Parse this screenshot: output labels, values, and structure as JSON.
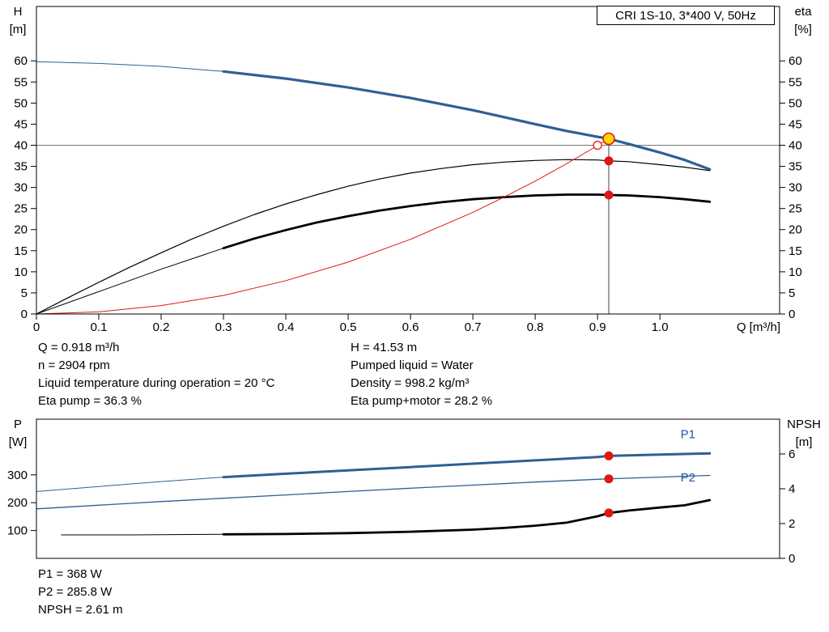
{
  "colors": {
    "curve_blue": "#2e6094",
    "label_blue": "#2256a5",
    "red": "#e01616",
    "yellow": "#ffd900",
    "black": "#000000",
    "gray_line": "#777777",
    "dark_line": "#444444"
  },
  "duty_info": {
    "left": [
      "Q = 0.918 m³/h",
      "n = 2904 rpm",
      "Liquid temperature during operation = 20 °C",
      "Eta pump = 36.3 %"
    ],
    "right": [
      "H = 41.53 m",
      "Pumped liquid = Water",
      "Density = 998.2 kg/m³",
      "Eta pump+motor = 28.2 %"
    ]
  },
  "power_info": [
    "P1 = 368 W",
    "P2 = 285.8 W",
    "NPSH = 2.61 m"
  ],
  "chart_data": [
    {
      "type": "line",
      "title": "CRI 1S-10, 3*400 V, 50Hz",
      "x_axis": {
        "label": "Q [m³/h]",
        "domain": [
          0,
          1.192
        ],
        "ticks": [
          0,
          0.1,
          0.2,
          0.3,
          0.4,
          0.5,
          0.6,
          0.7,
          0.8,
          0.9,
          1.0
        ],
        "tick_labels": [
          "0",
          "0.1",
          "0.2",
          "0.3",
          "0.4",
          "0.5",
          "0.6",
          "0.7",
          "0.8",
          "0.9",
          "1.0"
        ]
      },
      "y_left": {
        "name": "H",
        "unit": "[m]",
        "domain": [
          0,
          72.9
        ],
        "ticks": [
          0,
          5,
          10,
          15,
          20,
          25,
          30,
          35,
          40,
          45,
          50,
          55,
          60
        ]
      },
      "y_right": {
        "name": "eta",
        "unit": "[%]",
        "domain": [
          0,
          72.9
        ],
        "ticks": [
          0,
          5,
          10,
          15,
          20,
          25,
          30,
          35,
          40,
          45,
          50,
          55,
          60
        ]
      },
      "grid": false,
      "series": [
        {
          "name": "head-curve-min-flow",
          "axis": "left",
          "color": "curve_blue",
          "width": 1,
          "points": [
            [
              0,
              59.8
            ],
            [
              0.1,
              59.4
            ],
            [
              0.2,
              58.7
            ],
            [
              0.3,
              57.5
            ]
          ]
        },
        {
          "name": "head-curve",
          "axis": "left",
          "color": "curve_blue",
          "width": 3.2,
          "points": [
            [
              0.3,
              57.5
            ],
            [
              0.4,
              55.8
            ],
            [
              0.5,
              53.7
            ],
            [
              0.6,
              51.2
            ],
            [
              0.7,
              48.3
            ],
            [
              0.8,
              45.0
            ],
            [
              0.85,
              43.4
            ],
            [
              0.9,
              42.0
            ],
            [
              0.918,
              41.53
            ],
            [
              0.95,
              40.3
            ],
            [
              1.0,
              38.3
            ],
            [
              1.04,
              36.5
            ],
            [
              1.08,
              34.3
            ]
          ]
        },
        {
          "name": "eta-pump-curve",
          "axis": "right",
          "color": "black",
          "width": 1.2,
          "points": [
            [
              0,
              0
            ],
            [
              0.05,
              3.8
            ],
            [
              0.1,
              7.5
            ],
            [
              0.15,
              11.1
            ],
            [
              0.2,
              14.5
            ],
            [
              0.25,
              17.8
            ],
            [
              0.3,
              20.8
            ],
            [
              0.35,
              23.6
            ],
            [
              0.4,
              26.1
            ],
            [
              0.45,
              28.3
            ],
            [
              0.5,
              30.3
            ],
            [
              0.55,
              32.0
            ],
            [
              0.6,
              33.4
            ],
            [
              0.65,
              34.5
            ],
            [
              0.7,
              35.4
            ],
            [
              0.75,
              36.0
            ],
            [
              0.8,
              36.4
            ],
            [
              0.85,
              36.6
            ],
            [
              0.9,
              36.5
            ],
            [
              0.918,
              36.3
            ],
            [
              0.95,
              36.1
            ],
            [
              1.0,
              35.4
            ],
            [
              1.04,
              34.8
            ],
            [
              1.08,
              34.0
            ]
          ]
        },
        {
          "name": "eta-pump-motor-min-flow",
          "axis": "right",
          "color": "black",
          "width": 1,
          "points": [
            [
              0,
              0
            ],
            [
              0.1,
              5.3
            ],
            [
              0.2,
              10.6
            ],
            [
              0.3,
              15.6
            ]
          ]
        },
        {
          "name": "eta-pump-motor-curve",
          "axis": "right",
          "color": "black",
          "width": 2.8,
          "points": [
            [
              0.3,
              15.6
            ],
            [
              0.35,
              17.9
            ],
            [
              0.4,
              19.9
            ],
            [
              0.45,
              21.7
            ],
            [
              0.5,
              23.2
            ],
            [
              0.55,
              24.5
            ],
            [
              0.6,
              25.6
            ],
            [
              0.65,
              26.5
            ],
            [
              0.7,
              27.2
            ],
            [
              0.75,
              27.7
            ],
            [
              0.8,
              28.1
            ],
            [
              0.85,
              28.3
            ],
            [
              0.9,
              28.3
            ],
            [
              0.918,
              28.2
            ],
            [
              0.95,
              28.1
            ],
            [
              1.0,
              27.7
            ],
            [
              1.04,
              27.2
            ],
            [
              1.08,
              26.6
            ]
          ]
        },
        {
          "name": "system-curve",
          "axis": "left",
          "color": "red",
          "width": 1,
          "points": [
            [
              0,
              0
            ],
            [
              0.1,
              0.5
            ],
            [
              0.2,
              2.0
            ],
            [
              0.3,
              4.4
            ],
            [
              0.4,
              7.9
            ],
            [
              0.5,
              12.3
            ],
            [
              0.6,
              17.7
            ],
            [
              0.7,
              24.1
            ],
            [
              0.75,
              27.7
            ],
            [
              0.8,
              31.5
            ],
            [
              0.85,
              35.6
            ],
            [
              0.9,
              39.9
            ],
            [
              0.918,
              41.53
            ]
          ]
        }
      ],
      "guide_lines": [
        {
          "type": "h",
          "value": 40,
          "axis": "left",
          "color": "gray_line",
          "width": 1
        },
        {
          "type": "v",
          "x": 0.918,
          "from": 0,
          "to": 41.53,
          "axis": "left",
          "color": "dark_line",
          "width": 1
        }
      ],
      "markers": [
        {
          "name": "duty-point-specified",
          "x": 0.9,
          "y": 40,
          "axis": "left",
          "shape": "open-circle",
          "color": "red",
          "r": 5
        },
        {
          "name": "duty-point-actual",
          "x": 0.918,
          "y": 41.53,
          "axis": "left",
          "shape": "dot",
          "fill": "yellow",
          "stroke": "red",
          "r": 7
        },
        {
          "name": "eta-pump-point",
          "x": 0.918,
          "y": 36.3,
          "axis": "right",
          "shape": "dot",
          "fill": "red",
          "r": 5.5
        },
        {
          "name": "eta-pump-motor-point",
          "x": 0.918,
          "y": 28.2,
          "axis": "right",
          "shape": "dot",
          "fill": "red",
          "r": 5.5
        }
      ]
    },
    {
      "type": "line",
      "title": "",
      "x_axis": {
        "label": "",
        "domain": [
          0,
          1.192
        ],
        "ticks": [],
        "tick_labels": []
      },
      "y_left": {
        "name": "P",
        "unit": "[W]",
        "domain": [
          0,
          500
        ],
        "ticks": [
          100,
          200,
          300
        ]
      },
      "y_right": {
        "name": "NPSH",
        "unit": "[m]",
        "domain": [
          0,
          8
        ],
        "ticks": [
          0,
          2,
          4,
          6
        ]
      },
      "grid": false,
      "series": [
        {
          "name": "p1-curve-min-flow",
          "axis": "left",
          "color": "curve_blue",
          "width": 1,
          "points": [
            [
              0,
              240
            ],
            [
              0.1,
              258
            ],
            [
              0.2,
              276
            ],
            [
              0.3,
              292
            ]
          ]
        },
        {
          "name": "p1-curve",
          "axis": "left",
          "color": "curve_blue",
          "width": 3,
          "points": [
            [
              0.3,
              292
            ],
            [
              0.4,
              304
            ],
            [
              0.5,
              316
            ],
            [
              0.6,
              328
            ],
            [
              0.7,
              340
            ],
            [
              0.8,
              352
            ],
            [
              0.9,
              364
            ],
            [
              0.918,
              368
            ],
            [
              1.0,
              373
            ],
            [
              1.04,
              375
            ],
            [
              1.08,
              377
            ]
          ]
        },
        {
          "name": "p2-curve",
          "axis": "left",
          "color": "curve_blue",
          "width": 1.3,
          "points": [
            [
              0,
              178
            ],
            [
              0.1,
              191
            ],
            [
              0.2,
              204
            ],
            [
              0.3,
              216
            ],
            [
              0.4,
              228
            ],
            [
              0.5,
              240
            ],
            [
              0.6,
              252
            ],
            [
              0.7,
              263
            ],
            [
              0.8,
              274
            ],
            [
              0.9,
              284
            ],
            [
              0.918,
              285.8
            ],
            [
              0.95,
              288
            ],
            [
              1.0,
              292
            ],
            [
              1.04,
              295
            ],
            [
              1.08,
              298
            ]
          ]
        },
        {
          "name": "npsh-curve-min-flow",
          "axis": "right",
          "color": "black",
          "width": 1,
          "points": [
            [
              0.04,
              1.35
            ],
            [
              0.15,
              1.35
            ],
            [
              0.3,
              1.38
            ]
          ]
        },
        {
          "name": "npsh-curve",
          "axis": "right",
          "color": "black",
          "width": 2.8,
          "points": [
            [
              0.3,
              1.38
            ],
            [
              0.4,
              1.4
            ],
            [
              0.5,
              1.45
            ],
            [
              0.6,
              1.53
            ],
            [
              0.7,
              1.65
            ],
            [
              0.75,
              1.75
            ],
            [
              0.8,
              1.88
            ],
            [
              0.85,
              2.05
            ],
            [
              0.9,
              2.42
            ],
            [
              0.918,
              2.61
            ],
            [
              0.95,
              2.75
            ],
            [
              1.0,
              2.92
            ],
            [
              1.04,
              3.05
            ],
            [
              1.08,
              3.35
            ]
          ]
        }
      ],
      "guide_lines": [],
      "annotations": [
        {
          "text": "P1",
          "x": 1.045,
          "y": 432,
          "axis": "left",
          "color": "label_blue"
        },
        {
          "text": "P2",
          "x": 1.045,
          "y": 276,
          "axis": "left",
          "color": "label_blue"
        }
      ],
      "markers": [
        {
          "name": "p1-point",
          "x": 0.918,
          "y": 368,
          "axis": "left",
          "shape": "dot",
          "fill": "red",
          "r": 5.5
        },
        {
          "name": "p2-point",
          "x": 0.918,
          "y": 285.8,
          "axis": "left",
          "shape": "dot",
          "fill": "red",
          "r": 5.5
        },
        {
          "name": "npsh-point",
          "x": 0.918,
          "y": 2.61,
          "axis": "right",
          "shape": "dot",
          "fill": "red",
          "r": 5.5
        }
      ]
    }
  ]
}
